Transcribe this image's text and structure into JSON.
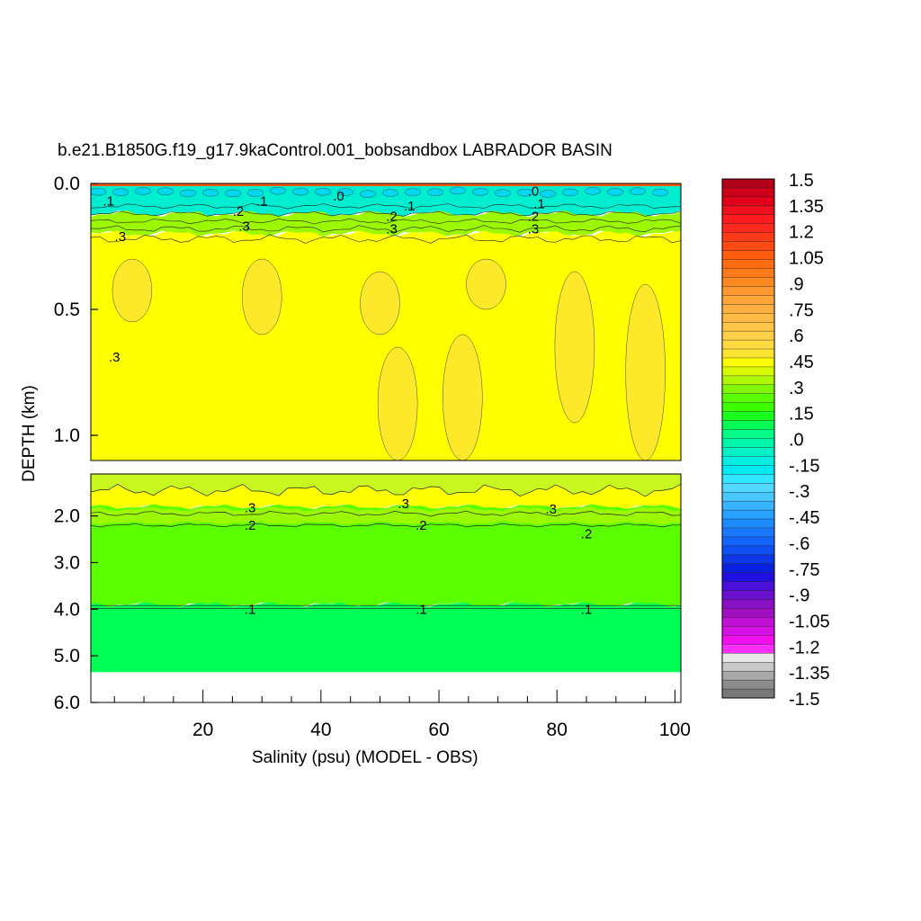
{
  "chart_data": {
    "type": "heatmap",
    "title": "b.e21.B1850G.f19_g17.9kaControl.001_bobsandbox LABRADOR BASIN",
    "xlabel": "Salinity (psu) (MODEL - OBS)",
    "ylabel": "DEPTH (km)",
    "xlim": [
      1,
      101
    ],
    "x_ticks": [
      20,
      40,
      60,
      80,
      100
    ],
    "upper_panel": {
      "ylim": [
        0.0,
        1.1
      ],
      "y_ticks": [
        "0.0",
        "0.5",
        "1.0"
      ]
    },
    "lower_panel": {
      "ylim": [
        1.1,
        6.0
      ],
      "y_ticks": [
        "2.0",
        "3.0",
        "4.0",
        "5.0",
        "6.0"
      ]
    },
    "grid": false,
    "colorbar": {
      "placement": "right",
      "labels": [
        "1.5",
        "1.35",
        "1.2",
        "1.05",
        ".9",
        ".75",
        ".6",
        ".45",
        ".3",
        ".15",
        ".0",
        "-.15",
        "-.3",
        "-.45",
        "-.6",
        "-.75",
        "-.9",
        "-1.05",
        "-1.2",
        "-1.35",
        "-1.5"
      ],
      "colors": [
        "#b0001a",
        "#cc0018",
        "#e0001a",
        "#f0101e",
        "#ff1d22",
        "#ff2a1e",
        "#ff3a18",
        "#ff4a14",
        "#ff5c10",
        "#ff6c12",
        "#ff7b1a",
        "#ff8a24",
        "#ff9830",
        "#ffa53a",
        "#ffb042",
        "#ffbb46",
        "#ffc648",
        "#ffd048",
        "#ffda40",
        "#ffe433",
        "#ffff00",
        "#d8fa00",
        "#b0f800",
        "#80f600",
        "#5cff00",
        "#3cff00",
        "#18ff20",
        "#00ff55",
        "#00ff88",
        "#00f7aa",
        "#00f0c8",
        "#00eee0",
        "#00e8f0",
        "#30e6ff",
        "#50d8ff",
        "#48c8ff",
        "#38b4ff",
        "#28a0ff",
        "#1e8cff",
        "#1a78ff",
        "#1464ff",
        "#1050f0",
        "#1038e8",
        "#0a20e0",
        "#2010e0",
        "#4810d8",
        "#6c10d0",
        "#8a10c8",
        "#a010c0",
        "#c010d8",
        "#d810e8",
        "#f010f0",
        "#ff30ff",
        "#e8e8e8",
        "#c8c8c8",
        "#a8a8a8",
        "#8c8c8c",
        "#787878"
      ]
    },
    "fill_regions": [
      {
        "name": "surface",
        "depth_range_km": [
          0.0,
          0.12
        ],
        "value": 0.0
      },
      {
        "name": "upper",
        "depth_range_km": [
          0.12,
          0.2
        ],
        "value": 0.15
      },
      {
        "name": "thermocline",
        "depth_range_km": [
          0.2,
          1.1
        ],
        "value": 0.3
      },
      {
        "name": "lower-top",
        "depth_range_km": [
          1.1,
          1.8
        ],
        "value": 0.3
      },
      {
        "name": "lower-mid",
        "depth_range_km": [
          1.8,
          3.9
        ],
        "value": 0.2
      },
      {
        "name": "deep",
        "depth_range_km": [
          3.9,
          5.35
        ],
        "value": 0.1
      }
    ],
    "contour_labels": [
      {
        "text": ".1",
        "x": 4,
        "y": 0.07
      },
      {
        "text": ".2",
        "x": 26,
        "y": 0.11
      },
      {
        "text": ".1",
        "x": 30,
        "y": 0.07
      },
      {
        "text": ".3",
        "x": 27,
        "y": 0.17
      },
      {
        "text": ".3",
        "x": 6,
        "y": 0.21
      },
      {
        "text": ".0",
        "x": 43,
        "y": 0.05
      },
      {
        "text": ".1",
        "x": 55,
        "y": 0.09
      },
      {
        "text": ".2",
        "x": 52,
        "y": 0.13
      },
      {
        "text": ".3",
        "x": 52,
        "y": 0.18
      },
      {
        "text": ".0",
        "x": 76,
        "y": 0.03
      },
      {
        "text": ".1",
        "x": 77,
        "y": 0.08
      },
      {
        "text": ".2",
        "x": 76,
        "y": 0.13
      },
      {
        "text": ".3",
        "x": 76,
        "y": 0.18
      },
      {
        "text": ".3",
        "x": 5,
        "y": 0.69
      },
      {
        "text": ".3",
        "x": 28,
        "y": 1.82
      },
      {
        "text": ".3",
        "x": 54,
        "y": 1.74
      },
      {
        "text": ".3",
        "x": 79,
        "y": 1.85
      },
      {
        "text": ".2",
        "x": 28,
        "y": 2.2
      },
      {
        "text": ".2",
        "x": 57,
        "y": 2.2
      },
      {
        "text": ".2",
        "x": 85,
        "y": 2.38
      },
      {
        "text": ".1",
        "x": 28,
        "y": 4.0
      },
      {
        "text": ".1",
        "x": 57,
        "y": 4.0
      },
      {
        "text": ".1",
        "x": 85,
        "y": 4.0
      }
    ]
  }
}
